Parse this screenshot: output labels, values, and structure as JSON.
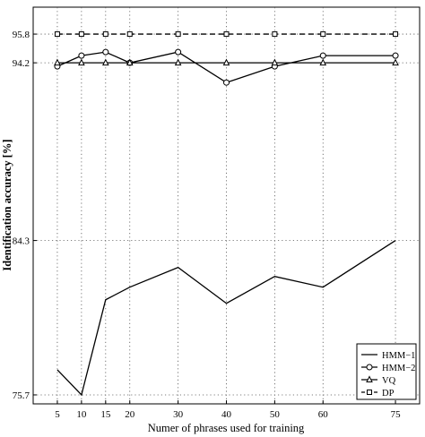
{
  "chart_data": {
    "type": "line",
    "xlabel": "Numer of phrases used for training",
    "ylabel": "Identification accuracy [%]",
    "x": [
      5,
      10,
      15,
      20,
      30,
      40,
      50,
      60,
      75
    ],
    "x_ticks": [
      5,
      10,
      15,
      20,
      30,
      40,
      50,
      60,
      75
    ],
    "y_ticks": [
      75.7,
      84.3,
      94.2,
      95.8
    ],
    "xlim": [
      0,
      80
    ],
    "ylim": [
      75.2,
      97.3
    ],
    "grid": true,
    "legend_position": "bottom-right",
    "series": [
      {
        "name": "HMM−1",
        "marker": "none",
        "dash": "solid",
        "values": [
          77.1,
          75.7,
          81.0,
          81.7,
          82.8,
          80.8,
          82.3,
          81.7,
          84.3
        ]
      },
      {
        "name": "HMM−2",
        "marker": "circle",
        "dash": "solid",
        "values": [
          94.0,
          94.6,
          94.8,
          94.2,
          94.8,
          93.1,
          94.0,
          94.6,
          94.6
        ]
      },
      {
        "name": "VQ",
        "marker": "triangle",
        "dash": "solid",
        "values": [
          94.2,
          94.2,
          94.2,
          94.2,
          94.2,
          94.2,
          94.2,
          94.2,
          94.2
        ]
      },
      {
        "name": "DP",
        "marker": "square",
        "dash": "dashed",
        "values": [
          95.8,
          95.8,
          95.8,
          95.8,
          95.8,
          95.8,
          95.8,
          95.8,
          95.8
        ]
      }
    ]
  }
}
